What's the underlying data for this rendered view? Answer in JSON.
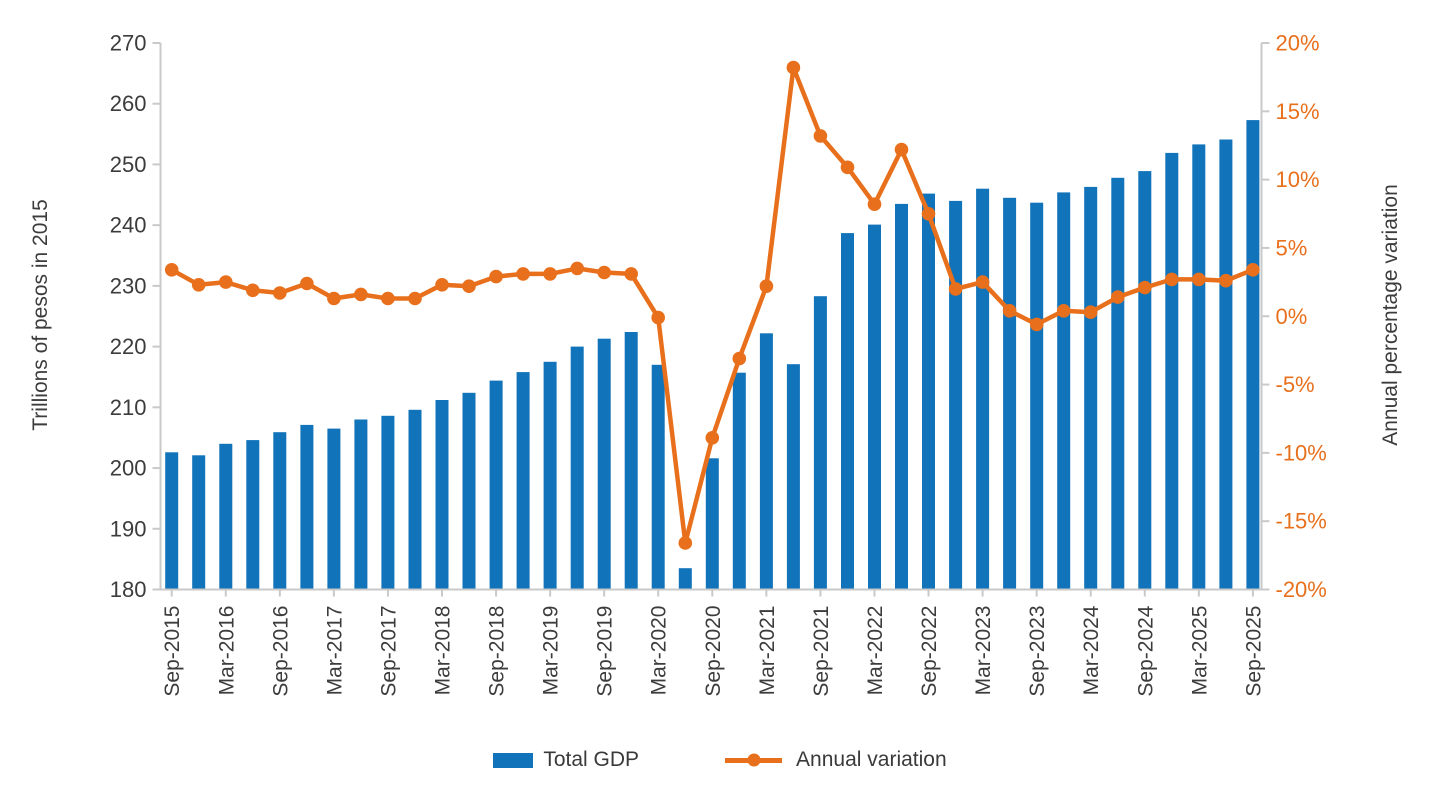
{
  "chart_data": {
    "type": "bar+line",
    "title": "",
    "categories": [
      "Sep-2015",
      "Dec-2015",
      "Mar-2016",
      "Jun-2016",
      "Sep-2016",
      "Dec-2016",
      "Mar-2017",
      "Jun-2017",
      "Sep-2017",
      "Dec-2017",
      "Mar-2018",
      "Jun-2018",
      "Sep-2018",
      "Dec-2018",
      "Mar-2019",
      "Jun-2019",
      "Sep-2019",
      "Dec-2019",
      "Mar-2020",
      "Jun-2020",
      "Sep-2020",
      "Dec-2020",
      "Mar-2021",
      "Jun-2021",
      "Sep-2021",
      "Dec-2021",
      "Mar-2022",
      "Jun-2022",
      "Sep-2022",
      "Dec-2022",
      "Mar-2023",
      "Jun-2023",
      "Sep-2023",
      "Dec-2023",
      "Mar-2024",
      "Jun-2024",
      "Sep-2024",
      "Dec-2024",
      "Mar-2025",
      "Jun-2025",
      "Sep-2025"
    ],
    "x_tick_every": 2,
    "series": [
      {
        "name": "Total GDP",
        "type": "bar",
        "axis": "left",
        "color": "#1173B9",
        "values": [
          202.6,
          202.1,
          204.0,
          204.6,
          205.9,
          207.1,
          206.5,
          208.0,
          208.6,
          209.6,
          211.2,
          212.4,
          214.4,
          215.8,
          217.5,
          220.0,
          221.3,
          222.4,
          217.0,
          183.5,
          201.6,
          215.7,
          222.2,
          217.1,
          228.3,
          238.7,
          240.1,
          243.5,
          245.2,
          244.0,
          246.0,
          244.5,
          243.7,
          245.4,
          246.3,
          247.8,
          248.9,
          251.9,
          253.3,
          254.1,
          257.3
        ]
      },
      {
        "name": "Annual variation",
        "type": "line",
        "axis": "right",
        "color": "#E8701C",
        "values": [
          3.4,
          2.3,
          2.5,
          1.9,
          1.7,
          2.4,
          1.3,
          1.6,
          1.3,
          1.3,
          2.3,
          2.2,
          2.9,
          3.1,
          3.1,
          3.5,
          3.2,
          3.1,
          -0.1,
          -16.6,
          -8.9,
          -3.1,
          2.2,
          18.2,
          13.2,
          10.9,
          8.2,
          12.2,
          7.5,
          2.0,
          2.5,
          0.4,
          -0.6,
          0.4,
          0.3,
          1.4,
          2.1,
          2.7,
          2.7,
          2.6,
          3.4
        ]
      }
    ],
    "left_axis": {
      "label": "Trillions of pesos in 2015",
      "min": 180,
      "max": 270,
      "step": 10
    },
    "right_axis": {
      "label": "Annual percentage variation",
      "min": -20,
      "max": 20,
      "step": 5,
      "suffix": "%"
    },
    "grid": false,
    "legend_position": "bottom",
    "colors": {
      "axis_line": "#c9c9c9",
      "tick_label": "#3c3c3c",
      "right_tick_label": "#E8701C"
    }
  },
  "legend": {
    "total_gdp": "Total GDP",
    "annual_variation": "Annual variation"
  }
}
